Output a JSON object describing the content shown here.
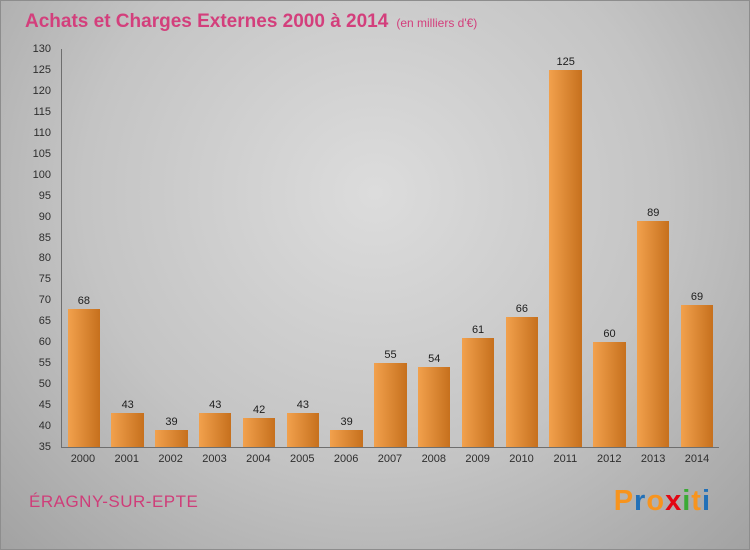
{
  "title": "Achats et Charges Externes 2000 à 2014",
  "subtitle": "(en milliers d'€)",
  "footer": {
    "city": "ÉRAGNY-SUR-EPTE",
    "logo_letters": [
      {
        "ch": "P",
        "color": "#f7941e"
      },
      {
        "ch": "r",
        "color": "#2170b8"
      },
      {
        "ch": "o",
        "color": "#f7941e"
      },
      {
        "ch": "x",
        "color": "#e30613"
      },
      {
        "ch": "i",
        "color": "#3aaa35"
      },
      {
        "ch": "t",
        "color": "#f7941e"
      },
      {
        "ch": "i",
        "color": "#2170b8"
      }
    ]
  },
  "chart_data": {
    "type": "bar",
    "categories": [
      "2000",
      "2001",
      "2002",
      "2003",
      "2004",
      "2005",
      "2006",
      "2007",
      "2008",
      "2009",
      "2010",
      "2011",
      "2012",
      "2013",
      "2014"
    ],
    "values": [
      68,
      43,
      39,
      43,
      42,
      43,
      39,
      55,
      54,
      61,
      66,
      125,
      60,
      89,
      69
    ],
    "title": "Achats et Charges Externes 2000 à 2014",
    "xlabel": "",
    "ylabel": "",
    "ylim": [
      35,
      130
    ],
    "ytick_step": 5,
    "legend": "none",
    "grid": false,
    "bar_color_light": "#f2a14d",
    "bar_color_dark": "#c6701d"
  }
}
